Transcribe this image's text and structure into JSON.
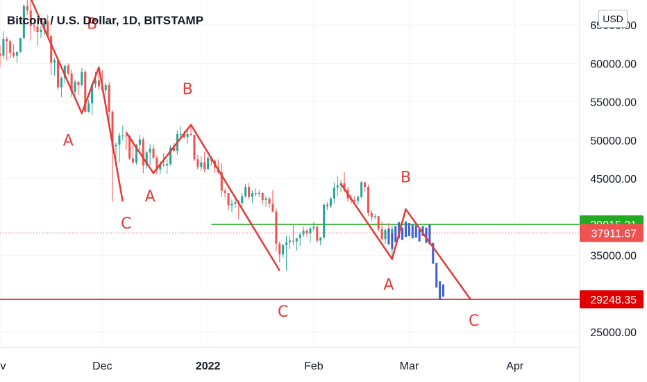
{
  "header": {
    "title": "Bitcoin / U.S. Dollar, 1D, BITSTAMP",
    "currency": "USD"
  },
  "colors": {
    "up": "#26a69a",
    "down": "#ef5350",
    "wave": "#e53935",
    "forecast": "#3f5fd6",
    "green_line": "#22ab22",
    "grid": "#f0f3fa"
  },
  "chart_data": {
    "type": "candlestick",
    "y_scale": {
      "min": 23000,
      "max": 68000
    },
    "y_ticks": [
      "65000.00",
      "60000.00",
      "55000.00",
      "50000.00",
      "45000.00",
      "35000.00",
      "25000.00"
    ],
    "x_ticks": [
      "ov",
      "Dec",
      "2022",
      "Feb",
      "Mar",
      "Apr"
    ],
    "x_range": [
      "2021-11-01",
      "2022-04-20"
    ],
    "price_labels": [
      {
        "name": "resistance-label",
        "value": 39015.31,
        "text": "39015.31",
        "color": "#22ab22"
      },
      {
        "name": "current-price-label",
        "value": 37911.67,
        "text": "37911.67",
        "color": "#ef5350"
      },
      {
        "name": "support-label",
        "value": 29248.35,
        "text": "29248.35",
        "color": "#e00000"
      }
    ],
    "horizontal_lines": [
      {
        "name": "green-resistance-line",
        "value": 39015.31,
        "from": "2022-01-02",
        "style": "solid",
        "color": "#22ab22"
      },
      {
        "name": "current-price-line",
        "value": 37911.67,
        "from": "2021-11-01",
        "style": "dotted",
        "color": "#ef5350"
      },
      {
        "name": "red-support-line",
        "value": 29248.35,
        "from": "2021-11-01",
        "style": "solid",
        "color": "#e00000"
      }
    ],
    "wave_lines": [
      {
        "name": "wave-1",
        "points": [
          [
            "2021-11-10",
            68500
          ],
          [
            "2021-11-25",
            53500
          ],
          [
            "2021-11-30",
            59500
          ],
          [
            "2021-12-07",
            42000
          ]
        ]
      },
      {
        "name": "wave-2",
        "points": [
          [
            "2021-12-08",
            51000
          ],
          [
            "2021-12-16",
            45700
          ],
          [
            "2021-12-27",
            52000
          ],
          [
            "2022-01-22",
            33000
          ]
        ]
      },
      {
        "name": "wave-3",
        "points": [
          [
            "2022-02-09",
            44300
          ],
          [
            "2022-02-24",
            34500
          ],
          [
            "2022-02-28",
            41000
          ],
          [
            "2022-03-19",
            29248
          ]
        ]
      }
    ],
    "wave_labels": [
      {
        "text": "B",
        "date": "2021-11-28",
        "value": 64500
      },
      {
        "text": "A",
        "date": "2021-11-21",
        "value": 49300
      },
      {
        "text": "C",
        "date": "2021-12-08",
        "value": 38500
      },
      {
        "text": "B",
        "date": "2021-12-26",
        "value": 56000
      },
      {
        "text": "A",
        "date": "2021-12-15",
        "value": 42000
      },
      {
        "text": "C",
        "date": "2022-01-23",
        "value": 27000
      },
      {
        "text": "B",
        "date": "2022-02-28",
        "value": 44500
      },
      {
        "text": "A",
        "date": "2022-02-23",
        "value": 30500
      },
      {
        "text": "C",
        "date": "2022-03-20",
        "value": 25800
      }
    ],
    "candles": [
      [
        "2021-11-01",
        61300,
        62400,
        59500,
        61000
      ],
      [
        "2021-11-02",
        61000,
        64200,
        60600,
        63200
      ],
      [
        "2021-11-03",
        63200,
        63500,
        60400,
        62900
      ],
      [
        "2021-11-04",
        62900,
        63100,
        60700,
        61400
      ],
      [
        "2021-11-05",
        61400,
        62500,
        60700,
        61000
      ],
      [
        "2021-11-06",
        61000,
        61500,
        60100,
        61500
      ],
      [
        "2021-11-07",
        61500,
        63300,
        61400,
        63300
      ],
      [
        "2021-11-08",
        63300,
        67700,
        63200,
        67500
      ],
      [
        "2021-11-09",
        67500,
        68500,
        66300,
        66900
      ],
      [
        "2021-11-10",
        66900,
        69000,
        63000,
        64900
      ],
      [
        "2021-11-11",
        64900,
        65600,
        64200,
        64800
      ],
      [
        "2021-11-12",
        64800,
        65400,
        62300,
        64100
      ],
      [
        "2021-11-13",
        64100,
        64900,
        63300,
        64400
      ],
      [
        "2021-11-14",
        64400,
        65400,
        63600,
        65500
      ],
      [
        "2021-11-15",
        65500,
        66300,
        63500,
        63600
      ],
      [
        "2021-11-16",
        63600,
        63600,
        58500,
        60100
      ],
      [
        "2021-11-17",
        60100,
        60700,
        58400,
        60400
      ],
      [
        "2021-11-18",
        60400,
        60800,
        56500,
        56900
      ],
      [
        "2021-11-19",
        56900,
        58300,
        55600,
        58100
      ],
      [
        "2021-11-20",
        58100,
        59800,
        57400,
        59700
      ],
      [
        "2021-11-21",
        59700,
        60000,
        58500,
        58700
      ],
      [
        "2021-11-22",
        58700,
        59200,
        55600,
        56300
      ],
      [
        "2021-11-23",
        56300,
        57900,
        55800,
        57600
      ],
      [
        "2021-11-24",
        57600,
        57700,
        55900,
        57200
      ],
      [
        "2021-11-25",
        57200,
        59400,
        57000,
        58900
      ],
      [
        "2021-11-26",
        58900,
        59200,
        53600,
        53700
      ],
      [
        "2021-11-27",
        53700,
        55300,
        53600,
        54800
      ],
      [
        "2021-11-28",
        54800,
        57400,
        53300,
        57300
      ],
      [
        "2021-11-29",
        57300,
        58900,
        56800,
        57800
      ],
      [
        "2021-11-30",
        57800,
        59200,
        56500,
        57000
      ],
      [
        "2021-12-01",
        57000,
        59100,
        56500,
        56500
      ],
      [
        "2021-12-02",
        56500,
        57500,
        55900,
        57200
      ],
      [
        "2021-12-03",
        57200,
        57600,
        52000,
        53700
      ],
      [
        "2021-12-04",
        53700,
        53900,
        42000,
        49200
      ],
      [
        "2021-12-05",
        49200,
        49700,
        47200,
        49400
      ],
      [
        "2021-12-06",
        49400,
        51000,
        47100,
        50600
      ],
      [
        "2021-12-07",
        50600,
        51900,
        50000,
        50600
      ],
      [
        "2021-12-08",
        50600,
        51200,
        48700,
        50500
      ],
      [
        "2021-12-09",
        50500,
        50700,
        47400,
        47600
      ],
      [
        "2021-12-10",
        47600,
        50100,
        46900,
        47100
      ],
      [
        "2021-12-11",
        47100,
        49500,
        46800,
        49400
      ],
      [
        "2021-12-12",
        49400,
        50700,
        48700,
        50100
      ],
      [
        "2021-12-13",
        50100,
        50400,
        45700,
        46700
      ],
      [
        "2021-12-14",
        46700,
        48600,
        46300,
        48400
      ],
      [
        "2021-12-15",
        48400,
        49500,
        46700,
        48900
      ],
      [
        "2021-12-16",
        48900,
        49400,
        47600,
        47700
      ],
      [
        "2021-12-17",
        47700,
        48000,
        45500,
        46200
      ],
      [
        "2021-12-18",
        46200,
        47300,
        45600,
        46800
      ],
      [
        "2021-12-19",
        46800,
        48300,
        46500,
        46700
      ],
      [
        "2021-12-20",
        46700,
        47500,
        45600,
        46900
      ],
      [
        "2021-12-21",
        46900,
        49300,
        46700,
        49000
      ],
      [
        "2021-12-22",
        49000,
        49600,
        48500,
        48600
      ],
      [
        "2021-12-23",
        48600,
        51300,
        48100,
        50800
      ],
      [
        "2021-12-24",
        50800,
        51800,
        50400,
        50800
      ],
      [
        "2021-12-25",
        50800,
        51200,
        50200,
        50400
      ],
      [
        "2021-12-26",
        50400,
        51400,
        49500,
        50800
      ],
      [
        "2021-12-27",
        50800,
        52000,
        50500,
        50700
      ],
      [
        "2021-12-28",
        50700,
        50700,
        47300,
        47500
      ],
      [
        "2021-12-29",
        47500,
        48100,
        46200,
        46500
      ],
      [
        "2021-12-30",
        46500,
        47900,
        46000,
        47100
      ],
      [
        "2021-12-31",
        47100,
        48500,
        45800,
        46200
      ],
      [
        "2022-01-01",
        46200,
        47900,
        46200,
        47700
      ],
      [
        "2022-01-02",
        47700,
        47900,
        46700,
        47300
      ],
      [
        "2022-01-03",
        47300,
        47500,
        45700,
        46400
      ],
      [
        "2022-01-04",
        46400,
        47500,
        45600,
        45800
      ],
      [
        "2022-01-05",
        45800,
        47000,
        42600,
        43400
      ],
      [
        "2022-01-06",
        43400,
        43700,
        42500,
        43100
      ],
      [
        "2022-01-07",
        43100,
        43100,
        40900,
        41500
      ],
      [
        "2022-01-08",
        41500,
        42300,
        40600,
        41700
      ],
      [
        "2022-01-09",
        41700,
        42800,
        41200,
        41900
      ],
      [
        "2022-01-10",
        41900,
        42200,
        39700,
        41800
      ],
      [
        "2022-01-11",
        41800,
        43100,
        41300,
        42700
      ],
      [
        "2022-01-12",
        42700,
        44300,
        42500,
        43900
      ],
      [
        "2022-01-13",
        43900,
        44400,
        42300,
        42600
      ],
      [
        "2022-01-14",
        42600,
        43400,
        41800,
        43100
      ],
      [
        "2022-01-15",
        43100,
        43700,
        42700,
        43100
      ],
      [
        "2022-01-16",
        43100,
        43500,
        42600,
        43100
      ],
      [
        "2022-01-17",
        43100,
        43200,
        41600,
        42200
      ],
      [
        "2022-01-18",
        42200,
        42700,
        41300,
        42400
      ],
      [
        "2022-01-19",
        42400,
        42600,
        41200,
        41700
      ],
      [
        "2022-01-20",
        41700,
        43500,
        40600,
        40700
      ],
      [
        "2022-01-21",
        40700,
        41100,
        35500,
        36500
      ],
      [
        "2022-01-22",
        36500,
        36800,
        34100,
        35100
      ],
      [
        "2022-01-23",
        35100,
        36500,
        34700,
        36300
      ],
      [
        "2022-01-24",
        36300,
        37500,
        33000,
        36700
      ],
      [
        "2022-01-25",
        36700,
        37500,
        35800,
        36900
      ],
      [
        "2022-01-26",
        36900,
        38900,
        36300,
        36800
      ],
      [
        "2022-01-27",
        36800,
        37200,
        35600,
        37200
      ],
      [
        "2022-01-28",
        37200,
        38000,
        36200,
        37700
      ],
      [
        "2022-01-29",
        37700,
        38700,
        37400,
        38200
      ],
      [
        "2022-01-30",
        38200,
        38400,
        37400,
        37900
      ],
      [
        "2022-01-31",
        37900,
        38700,
        36700,
        38500
      ],
      [
        "2022-02-01",
        38500,
        39300,
        38200,
        38700
      ],
      [
        "2022-02-02",
        38700,
        38900,
        36600,
        36900
      ],
      [
        "2022-02-03",
        36900,
        37400,
        36300,
        37300
      ],
      [
        "2022-02-04",
        37300,
        41700,
        37100,
        41600
      ],
      [
        "2022-02-05",
        41600,
        41900,
        40900,
        41400
      ],
      [
        "2022-02-06",
        41400,
        42600,
        41100,
        42400
      ],
      [
        "2022-02-07",
        42400,
        44500,
        41700,
        43800
      ],
      [
        "2022-02-08",
        43800,
        45300,
        42700,
        44100
      ],
      [
        "2022-02-09",
        44100,
        44800,
        43200,
        44400
      ],
      [
        "2022-02-10",
        44400,
        45800,
        43200,
        43500
      ],
      [
        "2022-02-11",
        43500,
        43900,
        42000,
        42400
      ],
      [
        "2022-02-12",
        42400,
        42900,
        41700,
        42200
      ],
      [
        "2022-02-13",
        42200,
        42700,
        41900,
        42100
      ],
      [
        "2022-02-14",
        42100,
        42800,
        41600,
        42600
      ],
      [
        "2022-02-15",
        42600,
        44700,
        42400,
        44500
      ],
      [
        "2022-02-16",
        44500,
        44600,
        43300,
        43900
      ],
      [
        "2022-02-17",
        43900,
        44200,
        40100,
        40500
      ],
      [
        "2022-02-18",
        40500,
        40900,
        39500,
        40000
      ],
      [
        "2022-02-19",
        40000,
        40400,
        39700,
        40100
      ],
      [
        "2022-02-20",
        40100,
        40100,
        38100,
        38400
      ],
      [
        "2022-02-21",
        38400,
        39400,
        36900,
        37100
      ],
      [
        "2022-02-22",
        37100,
        38400,
        36500,
        38300
      ],
      [
        "2022-02-23",
        38300,
        39200,
        37100,
        37200
      ],
      [
        "2022-02-24",
        37200,
        38900,
        34400,
        38400
      ]
    ],
    "forecast_bars": [
      [
        "2022-02-23",
        38500,
        36400
      ],
      [
        "2022-02-24",
        37900,
        35800
      ],
      [
        "2022-02-25",
        38800,
        36700
      ],
      [
        "2022-02-26",
        39300,
        37200
      ],
      [
        "2022-02-27",
        38600,
        37000
      ],
      [
        "2022-02-28",
        39400,
        37400
      ],
      [
        "2022-03-01",
        39200,
        37500
      ],
      [
        "2022-03-02",
        39000,
        37200
      ],
      [
        "2022-03-03",
        38900,
        37300
      ],
      [
        "2022-03-04",
        38400,
        36800
      ],
      [
        "2022-03-05",
        38800,
        37500
      ],
      [
        "2022-03-06",
        38600,
        36600
      ],
      [
        "2022-03-07",
        39000,
        36400
      ],
      [
        "2022-03-08",
        36600,
        33900
      ],
      [
        "2022-03-09",
        34000,
        30800
      ],
      [
        "2022-03-10",
        31600,
        29300
      ],
      [
        "2022-03-11",
        31200,
        29600
      ]
    ]
  }
}
